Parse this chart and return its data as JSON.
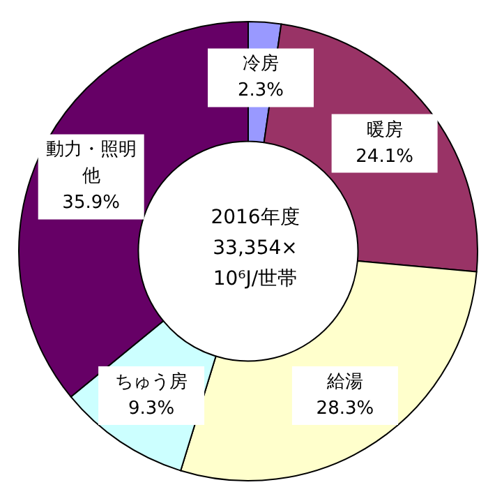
{
  "chart_data": {
    "type": "donut",
    "title": "2016年度\n33,354×\n10⁶J/世帯",
    "categories": [
      "冷房",
      "暖房",
      "給湯",
      "ちゅう房",
      "動力・照明他"
    ],
    "values": [
      2.3,
      24.1,
      28.3,
      9.3,
      35.9
    ],
    "value_labels": [
      "2.3%",
      "24.1%",
      "28.3%",
      "9.3%",
      "35.9%"
    ],
    "colors": [
      "#9999ff",
      "#993366",
      "#ffffcc",
      "#ccffff",
      "#660066"
    ],
    "legend": false
  }
}
